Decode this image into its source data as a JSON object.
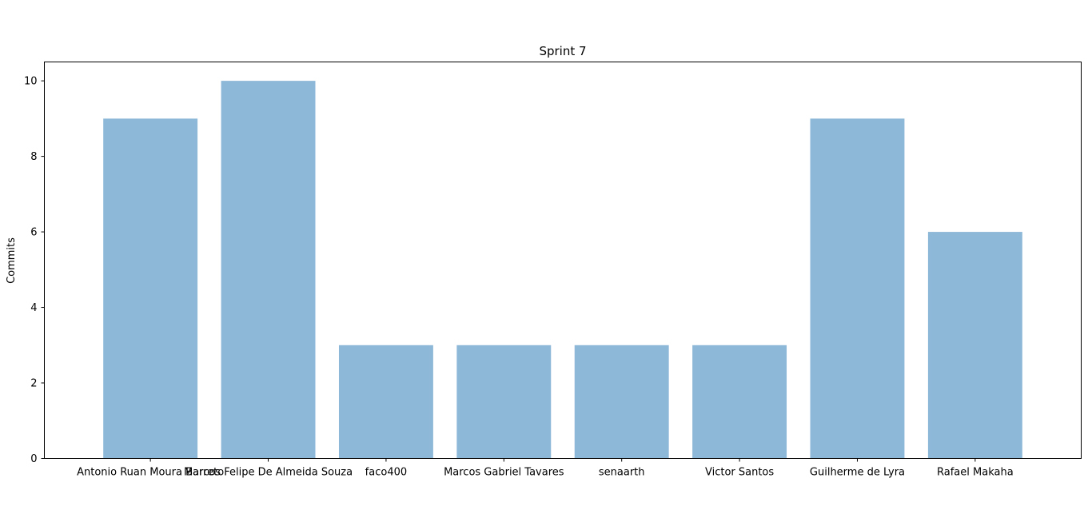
{
  "chart_data": {
    "type": "bar",
    "title": "Sprint 7",
    "xlabel": "",
    "ylabel": "Commits",
    "categories": [
      "Antonio Ruan Moura Barreto",
      "Marcos Felipe De Almeida Souza",
      "faco400",
      "Marcos Gabriel Tavares",
      "senaarth",
      "Victor Santos",
      "Guilherme de Lyra",
      "Rafael Makaha"
    ],
    "values": [
      9,
      10,
      3,
      3,
      3,
      3,
      9,
      6
    ],
    "ylim": [
      0,
      10.5
    ],
    "yticks": [
      0,
      2,
      4,
      6,
      8,
      10
    ],
    "grid": false,
    "legend": "none",
    "colors": {
      "bar": "#8eb8d8",
      "axis": "#000000",
      "background": "#ffffff"
    }
  }
}
